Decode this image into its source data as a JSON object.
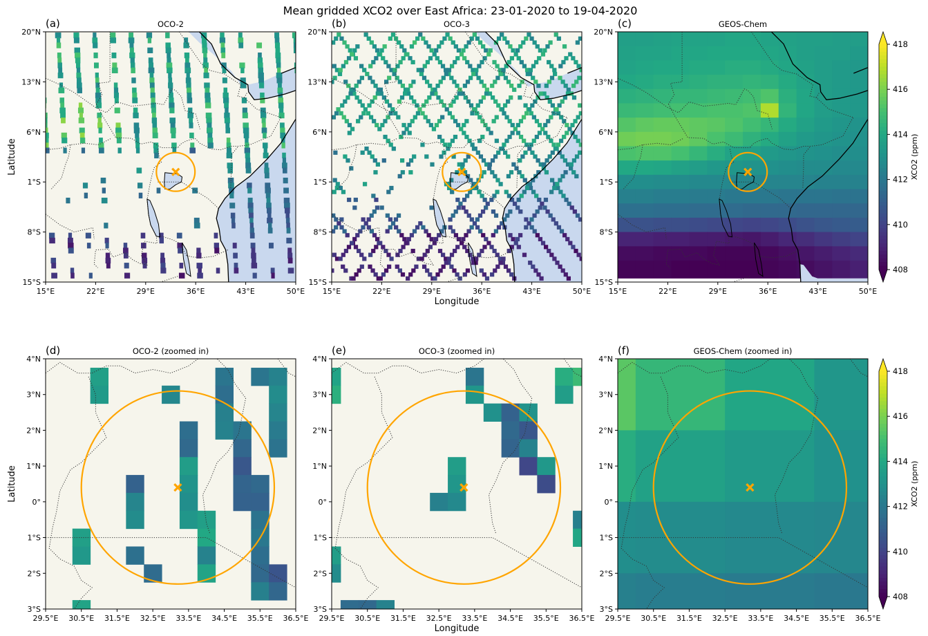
{
  "figure": {
    "title": "Mean gridded XCO2 over East Africa: 23-01-2020 to 19-04-2020"
  },
  "panels": [
    {
      "id": "a",
      "label": "(a)",
      "title": "OCO-2",
      "source": "oco2-tracks",
      "lon_ticks": [
        "15°E",
        "22°E",
        "29°E",
        "36°E",
        "43°E",
        "50°E"
      ],
      "lat_ticks": [
        "20°N",
        "13°N",
        "6°N",
        "1°S",
        "8°S",
        "15°S"
      ],
      "show_ylabel": true,
      "show_xlabel": false,
      "zoomed": false
    },
    {
      "id": "b",
      "label": "(b)",
      "title": "OCO-3",
      "source": "oco3-crosshatch",
      "lon_ticks": [
        "15°E",
        "22°E",
        "29°E",
        "36°E",
        "43°E",
        "50°E"
      ],
      "lat_ticks": [
        "20°N",
        "13°N",
        "6°N",
        "1°S",
        "8°S",
        "15°S"
      ],
      "show_ylabel": false,
      "show_xlabel": true,
      "zoomed": false
    },
    {
      "id": "c",
      "label": "(c)",
      "title": "GEOS-Chem",
      "source": "geoschem-field",
      "lon_ticks": [
        "15°E",
        "22°E",
        "29°E",
        "36°E",
        "43°E",
        "50°E"
      ],
      "lat_ticks": [
        "20°N",
        "13°N",
        "6°N",
        "1°S",
        "8°S",
        "15°S"
      ],
      "show_ylabel": false,
      "show_xlabel": false,
      "zoomed": false
    },
    {
      "id": "d",
      "label": "(d)",
      "title": "OCO-2 (zoomed in)",
      "source": "oco2-zoom",
      "lon_ticks": [
        "29.5°E",
        "30.5°E",
        "31.5°E",
        "32.5°E",
        "33.5°E",
        "34.5°E",
        "35.5°E",
        "36.5°E"
      ],
      "lat_ticks": [
        "4°N",
        "3°N",
        "2°N",
        "1°N",
        "0°",
        "1°S",
        "2°S",
        "3°S"
      ],
      "show_ylabel": true,
      "show_xlabel": false,
      "zoomed": true
    },
    {
      "id": "e",
      "label": "(e)",
      "title": "OCO-3 (zoomed in)",
      "source": "oco3-zoom",
      "lon_ticks": [
        "29.5°E",
        "30.5°E",
        "31.5°E",
        "32.5°E",
        "33.5°E",
        "34.5°E",
        "35.5°E",
        "36.5°E"
      ],
      "lat_ticks": [
        "4°N",
        "3°N",
        "2°N",
        "1°N",
        "0°",
        "1°S",
        "2°S",
        "3°S"
      ],
      "show_ylabel": false,
      "show_xlabel": true,
      "zoomed": true
    },
    {
      "id": "f",
      "label": "(f)",
      "title": "GEOS-Chem (zoomed in)",
      "source": "geoschem-zoom",
      "lon_ticks": [
        "29.5°E",
        "30.5°E",
        "31.5°E",
        "32.5°E",
        "33.5°E",
        "34.5°E",
        "35.5°E",
        "36.5°E"
      ],
      "lat_ticks": [
        "4°N",
        "3°N",
        "2°N",
        "1°N",
        "0°",
        "1°S",
        "2°S",
        "3°S"
      ],
      "show_ylabel": false,
      "show_xlabel": false,
      "zoomed": true
    }
  ],
  "axes": {
    "xlabel": "Longitude",
    "ylabel": "Latitude"
  },
  "overview_extent": {
    "lon_min": 15,
    "lon_max": 50,
    "lat_min": -15,
    "lat_max": 20
  },
  "zoom_extent": {
    "lon_min": 29.5,
    "lon_max": 36.5,
    "lat_min": -3,
    "lat_max": 4
  },
  "site": {
    "lon": 33.2,
    "lat": 0.4,
    "marker": "x",
    "circle_radius_deg": 2.7
  },
  "colorbar": {
    "label": "XCO2 (ppm)",
    "vmin": 408,
    "vmax": 418,
    "ticks": [
      "418",
      "416",
      "414",
      "412",
      "410",
      "408"
    ],
    "colormap": "viridis",
    "extend": "both"
  },
  "colors": {
    "land": "#f6f5ec",
    "ocean": "#c9d8ee",
    "marker": "#ffa500",
    "coastline": "#000000",
    "border": "#333333"
  },
  "geoschem_grid": {
    "lat_edges": [
      20,
      18,
      16,
      14,
      12,
      10,
      8,
      6,
      4,
      2,
      0,
      -2,
      -4,
      -6,
      -8,
      -10,
      -12,
      -14,
      -15
    ],
    "lon_edges": [
      15,
      17.5,
      20,
      22.5,
      25,
      27.5,
      30,
      32.5,
      35,
      37.5,
      40,
      42.5,
      45,
      47.5,
      50
    ],
    "xco2_ppm": [
      [
        413.6,
        413.6,
        413.7,
        413.8,
        413.8,
        413.8,
        413.9,
        413.9,
        413.8,
        413.7,
        413.6,
        413.6,
        413.5,
        413.5
      ],
      [
        413.7,
        413.8,
        413.8,
        413.9,
        413.9,
        414.0,
        414.0,
        414.0,
        413.9,
        413.8,
        413.6,
        413.5,
        413.5,
        413.4
      ],
      [
        413.8,
        413.9,
        414.0,
        414.0,
        414.1,
        414.1,
        414.2,
        414.2,
        414.1,
        413.9,
        413.7,
        413.5,
        413.4,
        413.3
      ],
      [
        414.0,
        414.1,
        414.2,
        414.2,
        414.3,
        414.4,
        414.4,
        414.5,
        414.4,
        414.1,
        413.8,
        413.5,
        413.4,
        413.3
      ],
      [
        414.3,
        414.4,
        414.5,
        414.6,
        414.6,
        414.7,
        414.8,
        414.9,
        415.2,
        414.3,
        413.9,
        413.5,
        413.4,
        413.3
      ],
      [
        414.7,
        414.8,
        414.9,
        415.0,
        415.0,
        415.1,
        415.1,
        415.2,
        416.8,
        414.5,
        413.9,
        413.5,
        413.4,
        413.3
      ],
      [
        415.3,
        415.5,
        415.6,
        415.6,
        415.5,
        415.4,
        415.2,
        414.9,
        414.6,
        414.1,
        413.7,
        413.4,
        413.2,
        413.1
      ],
      [
        415.8,
        415.9,
        415.9,
        415.8,
        415.5,
        415.1,
        414.8,
        414.4,
        414.1,
        413.7,
        413.4,
        413.2,
        413.1,
        413.0
      ],
      [
        415.1,
        415.2,
        415.2,
        415.0,
        414.6,
        414.2,
        413.8,
        413.6,
        413.4,
        413.2,
        413.1,
        413.0,
        412.9,
        412.9
      ],
      [
        414.0,
        414.0,
        413.9,
        413.7,
        413.5,
        413.3,
        413.2,
        413.1,
        413.0,
        412.9,
        412.8,
        412.8,
        412.7,
        412.7
      ],
      [
        412.9,
        412.9,
        412.8,
        412.8,
        412.7,
        412.7,
        412.6,
        412.6,
        412.5,
        412.5,
        412.5,
        412.4,
        412.4,
        412.4
      ],
      [
        412.3,
        412.3,
        412.2,
        412.2,
        412.1,
        412.1,
        412.0,
        412.0,
        412.0,
        411.9,
        411.9,
        411.9,
        411.8,
        411.8
      ],
      [
        411.7,
        411.7,
        411.6,
        411.6,
        411.5,
        411.5,
        411.5,
        411.4,
        411.4,
        411.4,
        411.3,
        411.3,
        411.3,
        411.3
      ],
      [
        410.5,
        410.5,
        410.4,
        410.4,
        410.3,
        410.2,
        410.1,
        410.0,
        410.1,
        410.3,
        410.5,
        410.7,
        410.8,
        410.9
      ],
      [
        409.0,
        409.0,
        408.9,
        408.9,
        408.8,
        408.8,
        408.7,
        408.6,
        408.8,
        409.1,
        409.3,
        409.6,
        409.8,
        410.0
      ],
      [
        408.3,
        408.3,
        408.2,
        408.2,
        408.2,
        408.1,
        408.1,
        408.1,
        408.2,
        408.4,
        408.6,
        408.8,
        409.0,
        409.2
      ],
      [
        408.1,
        408.1,
        408.1,
        408.0,
        408.0,
        408.0,
        408.0,
        408.0,
        408.1,
        408.2,
        408.3,
        408.5,
        408.7,
        408.9
      ],
      [
        408.1,
        408.1,
        408.1,
        408.0,
        408.0,
        408.0,
        408.0,
        408.0,
        408.1,
        408.2,
        408.3,
        408.5,
        408.7,
        408.9
      ]
    ]
  },
  "geoschem_zoom_grid": {
    "lat_edges": [
      4,
      2,
      0,
      -2,
      -3
    ],
    "lon_edges": [
      29.5,
      30,
      32.5,
      35,
      36.5
    ],
    "xco2_ppm": [
      [
        415.4,
        414.6,
        413.9,
        413.2
      ],
      [
        414.2,
        413.7,
        413.4,
        413.0
      ],
      [
        412.9,
        412.8,
        412.7,
        412.6
      ],
      [
        412.3,
        412.2,
        412.1,
        412.0
      ]
    ]
  },
  "oco2_zoom_cells": [
    {
      "lon": 31.0,
      "lat": 3.5,
      "value": 413.6
    },
    {
      "lon": 31.0,
      "lat": 3.0,
      "value": 413.4
    },
    {
      "lon": 33.0,
      "lat": 3.0,
      "value": 412.6
    },
    {
      "lon": 33.5,
      "lat": 2.0,
      "value": 411.6
    },
    {
      "lon": 33.5,
      "lat": 1.5,
      "value": 411.4
    },
    {
      "lon": 33.5,
      "lat": 1.0,
      "value": 413.5
    },
    {
      "lon": 33.5,
      "lat": 0.5,
      "value": 413.1
    },
    {
      "lon": 33.5,
      "lat": 0.0,
      "value": 412.9
    },
    {
      "lon": 33.5,
      "lat": -0.5,
      "value": 413.2
    },
    {
      "lon": 32.0,
      "lat": 0.5,
      "value": 411.1
    },
    {
      "lon": 32.0,
      "lat": 0.0,
      "value": 412.5
    },
    {
      "lon": 32.0,
      "lat": -0.5,
      "value": 412.8
    },
    {
      "lon": 34.5,
      "lat": 3.5,
      "value": 411.9
    },
    {
      "lon": 34.5,
      "lat": 3.0,
      "value": 411.6
    },
    {
      "lon": 34.5,
      "lat": 2.5,
      "value": 412.3
    },
    {
      "lon": 34.5,
      "lat": 2.0,
      "value": 412.4
    },
    {
      "lon": 35.0,
      "lat": 2.0,
      "value": 411.9
    },
    {
      "lon": 35.0,
      "lat": 1.5,
      "value": 411.3
    },
    {
      "lon": 35.0,
      "lat": 1.0,
      "value": 410.7
    },
    {
      "lon": 35.0,
      "lat": 0.5,
      "value": 411.2
    },
    {
      "lon": 35.0,
      "lat": 0.0,
      "value": 411.1
    },
    {
      "lon": 35.5,
      "lat": 3.5,
      "value": 411.9
    },
    {
      "lon": 35.5,
      "lat": 0.5,
      "value": 411.4
    },
    {
      "lon": 35.5,
      "lat": 0.0,
      "value": 411.1
    },
    {
      "lon": 35.5,
      "lat": -0.5,
      "value": 411.8
    },
    {
      "lon": 35.5,
      "lat": -1.0,
      "value": 412.0
    },
    {
      "lon": 35.5,
      "lat": -1.5,
      "value": 411.6
    },
    {
      "lon": 35.5,
      "lat": -2.0,
      "value": 411.4
    },
    {
      "lon": 35.5,
      "lat": -2.5,
      "value": 412.3
    },
    {
      "lon": 36.0,
      "lat": 3.5,
      "value": 412.4
    },
    {
      "lon": 36.0,
      "lat": 3.0,
      "value": 412.8
    },
    {
      "lon": 36.0,
      "lat": 2.5,
      "value": 412.5
    },
    {
      "lon": 36.0,
      "lat": 2.0,
      "value": 412.1
    },
    {
      "lon": 36.0,
      "lat": 1.5,
      "value": 411.8
    },
    {
      "lon": 36.0,
      "lat": -2.0,
      "value": 410.6
    },
    {
      "lon": 36.0,
      "lat": -2.5,
      "value": 411.3
    },
    {
      "lon": 34.0,
      "lat": -0.5,
      "value": 413.6
    },
    {
      "lon": 34.0,
      "lat": -1.0,
      "value": 414.0
    },
    {
      "lon": 34.0,
      "lat": -1.5,
      "value": 412.4
    },
    {
      "lon": 34.0,
      "lat": -2.0,
      "value": 413.8
    },
    {
      "lon": 30.5,
      "lat": -1.0,
      "value": 413.6
    },
    {
      "lon": 30.5,
      "lat": -1.5,
      "value": 413.3
    },
    {
      "lon": 32.0,
      "lat": -1.5,
      "value": 411.7
    },
    {
      "lon": 32.5,
      "lat": -2.0,
      "value": 411.5
    },
    {
      "lon": 30.5,
      "lat": -3.0,
      "value": 413.8
    }
  ],
  "oco3_zoom_cells": [
    {
      "lon": 29.5,
      "lat": 3.5,
      "value": 413.8
    },
    {
      "lon": 29.5,
      "lat": 3.0,
      "value": 414.3
    },
    {
      "lon": 33.5,
      "lat": 3.5,
      "value": 411.9
    },
    {
      "lon": 33.5,
      "lat": 3.0,
      "value": 413.2
    },
    {
      "lon": 34.0,
      "lat": 2.5,
      "value": 413.0
    },
    {
      "lon": 34.5,
      "lat": 2.5,
      "value": 411.1
    },
    {
      "lon": 34.5,
      "lat": 2.0,
      "value": 411.4
    },
    {
      "lon": 35.0,
      "lat": 2.5,
      "value": 413.1
    },
    {
      "lon": 35.0,
      "lat": 2.0,
      "value": 410.7
    },
    {
      "lon": 34.5,
      "lat": 1.5,
      "value": 411.2
    },
    {
      "lon": 35.0,
      "lat": 1.5,
      "value": 412.4
    },
    {
      "lon": 35.0,
      "lat": 1.0,
      "value": 410.1
    },
    {
      "lon": 35.5,
      "lat": 1.0,
      "value": 413.3
    },
    {
      "lon": 35.5,
      "lat": 0.5,
      "value": 410.3
    },
    {
      "lon": 33.0,
      "lat": 1.0,
      "value": 413.5
    },
    {
      "lon": 33.0,
      "lat": 0.5,
      "value": 413.2
    },
    {
      "lon": 32.5,
      "lat": 0.0,
      "value": 412.3
    },
    {
      "lon": 33.0,
      "lat": 0.0,
      "value": 412.7
    },
    {
      "lon": 36.0,
      "lat": 3.5,
      "value": 414.2
    },
    {
      "lon": 36.5,
      "lat": 3.5,
      "value": 414.8
    },
    {
      "lon": 36.0,
      "lat": 3.0,
      "value": 413.5
    },
    {
      "lon": 36.5,
      "lat": -0.5,
      "value": 412.3
    },
    {
      "lon": 36.5,
      "lat": -1.0,
      "value": 413.9
    },
    {
      "lon": 29.5,
      "lat": -1.5,
      "value": 413.5
    },
    {
      "lon": 29.5,
      "lat": -2.0,
      "value": 412.8
    },
    {
      "lon": 30.0,
      "lat": -3.0,
      "value": 411.5
    },
    {
      "lon": 30.5,
      "lat": -3.0,
      "value": 411.4
    },
    {
      "lon": 31.0,
      "lat": -3.0,
      "value": 412.4
    }
  ]
}
